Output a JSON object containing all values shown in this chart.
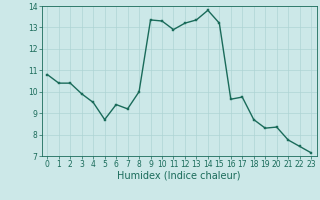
{
  "x": [
    0,
    1,
    2,
    3,
    4,
    5,
    6,
    7,
    8,
    9,
    10,
    11,
    12,
    13,
    14,
    15,
    16,
    17,
    18,
    19,
    20,
    21,
    22,
    23
  ],
  "y": [
    10.8,
    10.4,
    10.4,
    9.9,
    9.5,
    8.7,
    9.4,
    9.2,
    10.0,
    13.35,
    13.3,
    12.9,
    13.2,
    13.35,
    13.8,
    13.2,
    9.65,
    9.75,
    8.7,
    8.3,
    8.35,
    7.75,
    7.45,
    7.15
  ],
  "xlabel": "Humidex (Indice chaleur)",
  "ylim": [
    7,
    14
  ],
  "xlim": [
    -0.5,
    23.5
  ],
  "yticks": [
    7,
    8,
    9,
    10,
    11,
    12,
    13,
    14
  ],
  "xticks": [
    0,
    1,
    2,
    3,
    4,
    5,
    6,
    7,
    8,
    9,
    10,
    11,
    12,
    13,
    14,
    15,
    16,
    17,
    18,
    19,
    20,
    21,
    22,
    23
  ],
  "line_color": "#1a6b5a",
  "marker_color": "#1a6b5a",
  "bg_color": "#cce8e8",
  "grid_color": "#aed4d4",
  "axis_color": "#1a6b5a",
  "tick_label_color": "#1a6b5a",
  "xlabel_color": "#1a6b5a",
  "xlabel_fontsize": 7,
  "tick_fontsize": 5.5,
  "marker_size": 2.0,
  "line_width": 1.0
}
